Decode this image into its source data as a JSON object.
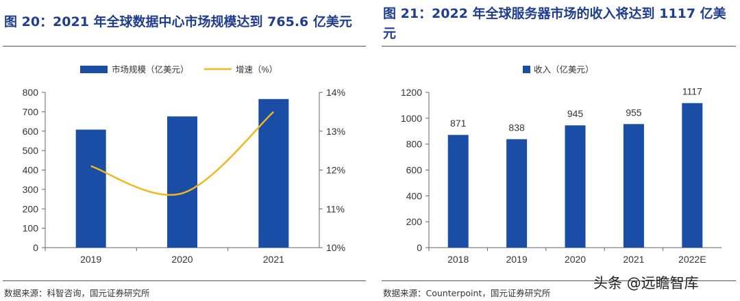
{
  "figures": [
    {
      "title": "图 20：2021 年全球数据中心市场规模达到 765.6 亿美元",
      "source": "数据来源：科智咨询，国元证券研究所"
    },
    {
      "title": "图 21：2022 年全球服务器市场的收入将达到 1117 亿美元",
      "source": "数据来源：Counterpoint，国元证券研究所"
    }
  ],
  "watermark": "头条 @远瞻智库",
  "colors": {
    "bar": "#1a4ea6",
    "line": "#f2b71f",
    "title": "#1f3d8f"
  },
  "chart_data": [
    {
      "type": "bar+line",
      "categories": [
        "2019",
        "2020",
        "2021"
      ],
      "series": [
        {
          "name": "市场规模（亿美元）",
          "type": "bar",
          "axis": "left",
          "values": [
            608,
            676,
            765.6
          ]
        },
        {
          "name": "增速（%）",
          "type": "line",
          "axis": "right",
          "values": [
            12.1,
            11.4,
            13.5
          ]
        }
      ],
      "y_left": {
        "min": 0,
        "max": 800,
        "ticks": [
          0,
          100,
          200,
          300,
          400,
          500,
          600,
          700,
          800
        ]
      },
      "y_right": {
        "min": 10,
        "max": 14,
        "ticks": [
          10,
          11,
          12,
          13,
          14
        ],
        "tick_labels": [
          "10%",
          "11%",
          "12%",
          "13%",
          "14%"
        ]
      },
      "legend": "top-center",
      "grid": false
    },
    {
      "type": "bar",
      "categories": [
        "2018",
        "2019",
        "2020",
        "2021",
        "2022E"
      ],
      "series": [
        {
          "name": "收入（亿美元）",
          "values": [
            871,
            838,
            945,
            955,
            1117
          ]
        }
      ],
      "data_labels": [
        "871",
        "838",
        "945",
        "955",
        "1117"
      ],
      "ylim": [
        0,
        1200
      ],
      "y_ticks": [
        0,
        200,
        400,
        600,
        800,
        1000,
        1200
      ],
      "legend": "top-center",
      "grid": false
    }
  ]
}
